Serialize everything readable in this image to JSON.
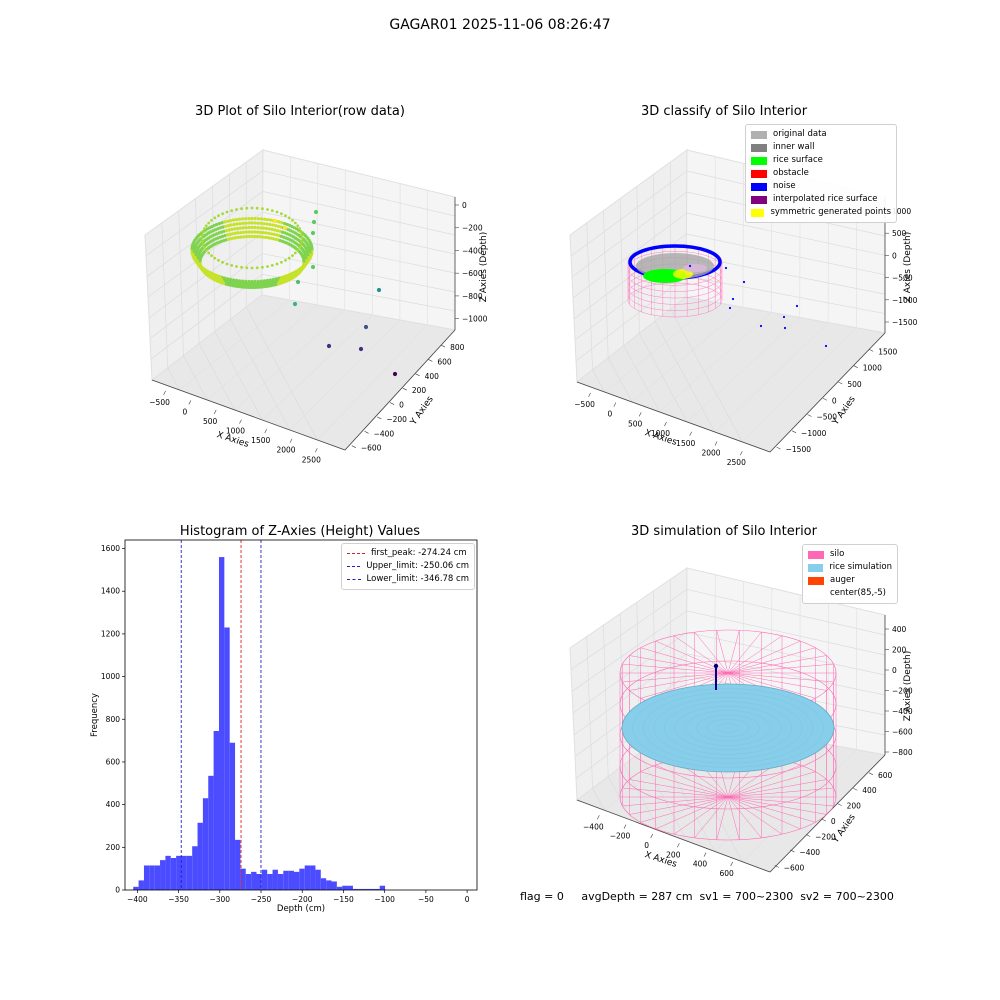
{
  "suptitle": "GAGAR01 2025-11-06 08:26:47",
  "footer": "flag = 0     avgDepth = 287 cm  sv1 = 700~2300  sv2 = 700~2300",
  "colors": {
    "hist_bar": "#4b4bff",
    "peak_line": "#e02020",
    "limit_line": "#2020d0",
    "silo": "#ff69b4",
    "rice": "#87ceeb",
    "auger": "#ff4500"
  },
  "chart_data": [
    {
      "type": "scatter",
      "title": "3D Plot of Silo Interior(row data)",
      "xlabel": "X Axies",
      "ylabel": "Y Axies",
      "zlabel": "Z Axies (Depth)",
      "xticks": [
        "−500",
        "0",
        "500",
        "1000",
        "1500",
        "2000",
        "2500"
      ],
      "yticks": [
        "−600",
        "−400",
        "−200",
        "0",
        "200",
        "400",
        "600",
        "800"
      ],
      "zticks": [
        "0",
        "−200",
        "−400",
        "−600",
        "−800",
        "−1000"
      ],
      "colormap": "viridis"
    },
    {
      "type": "scatter",
      "title": "3D classify of Silo Interior",
      "xlabel": "X Axies",
      "ylabel": "Y Axies",
      "zlabel": "Z Axies (Depth)",
      "xticks": [
        "−500",
        "0",
        "500",
        "1000",
        "1500",
        "2000",
        "2500"
      ],
      "yticks": [
        "−1500",
        "−1000",
        "−500",
        "0",
        "500",
        "1000",
        "1500"
      ],
      "zticks": [
        "1000",
        "500",
        "0",
        "−500",
        "−1000",
        "−1500"
      ],
      "legend": [
        {
          "name": "original data",
          "color": "#b0b0b0"
        },
        {
          "name": "inner wall",
          "color": "#808080"
        },
        {
          "name": "rice surface",
          "color": "#00ff00"
        },
        {
          "name": "obstacle",
          "color": "#ff0000"
        },
        {
          "name": "noise",
          "color": "#0000ff"
        },
        {
          "name": "interpolated rice surface",
          "color": "#800080"
        },
        {
          "name": "symmetric generated points",
          "color": "#ffff00"
        }
      ],
      "legend_position": "top-right"
    },
    {
      "type": "bar",
      "title": "Histogram of Z-Axies (Height) Values",
      "xlabel": "Depth (cm)",
      "ylabel": "Frequency",
      "xlim": [
        -415,
        12
      ],
      "ylim": [
        0,
        1640
      ],
      "bin_start": -405,
      "bin_width": 6.5,
      "values": [
        15,
        45,
        115,
        115,
        115,
        140,
        160,
        150,
        160,
        160,
        160,
        205,
        315,
        430,
        535,
        745,
        1560,
        1230,
        690,
        235,
        100,
        75,
        85,
        75,
        95,
        75,
        95,
        75,
        90,
        90,
        85,
        100,
        115,
        115,
        95,
        55,
        45,
        40,
        15,
        20,
        20,
        5,
        5,
        5,
        5,
        5,
        20
      ],
      "xticks": [
        -400,
        -350,
        -300,
        -250,
        -200,
        -150,
        -100,
        -50,
        0
      ],
      "yticks": [
        0,
        200,
        400,
        600,
        800,
        1000,
        1200,
        1400,
        1600
      ],
      "lines": [
        {
          "name": "first_peak: -274.24 cm",
          "x": -274.24,
          "color": "#e02020"
        },
        {
          "name": "Upper_limit: -250.06 cm",
          "x": -250.06,
          "color": "#2020d0"
        },
        {
          "name": "Lower_limit: -346.78 cm",
          "x": -346.78,
          "color": "#2020d0"
        }
      ],
      "legend_position": "top-right",
      "grid": false
    },
    {
      "type": "surface",
      "title": "3D simulation of Silo Interior",
      "xlabel": "X Axies",
      "ylabel": "Y Axies",
      "zlabel": "Z Axies (Depth)",
      "xticks": [
        "−400",
        "−200",
        "0",
        "200",
        "400",
        "600"
      ],
      "yticks": [
        "−600",
        "−400",
        "−200",
        "0",
        "200",
        "400",
        "600"
      ],
      "zticks": [
        "400",
        "200",
        "0",
        "−200",
        "−400",
        "−600",
        "−800"
      ],
      "legend": [
        {
          "name": "silo",
          "color": "#ff69b4"
        },
        {
          "name": "rice simulation",
          "color": "#87ceeb"
        },
        {
          "name": "auger",
          "color": "#ff4500"
        },
        {
          "name": "center(85,-5)",
          "color": ""
        }
      ],
      "legend_position": "top-right"
    }
  ]
}
